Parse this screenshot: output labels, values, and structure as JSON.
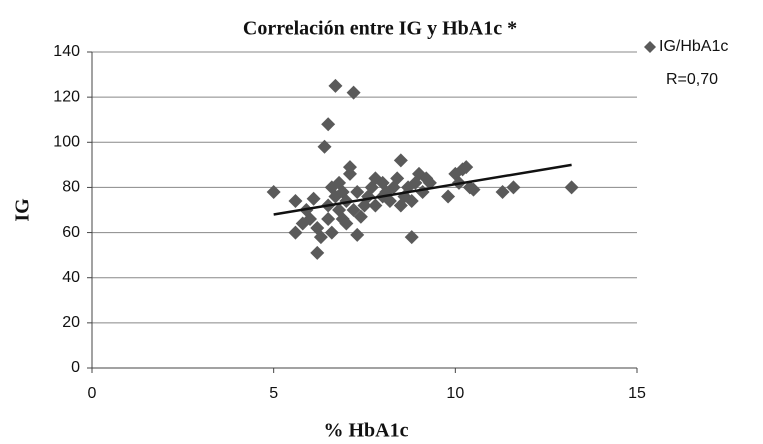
{
  "chart_data": {
    "type": "scatter",
    "title": "Correlación entre IG y HbA1c *",
    "x_label": "% HbA1c",
    "y_label": "IG",
    "annotation": "R=0,70",
    "legend": "right",
    "grid": true,
    "xlim": [
      0,
      15
    ],
    "xticks": [
      0,
      5,
      10,
      15
    ],
    "ylim": [
      0,
      140
    ],
    "yticks": [
      0,
      20,
      40,
      60,
      80,
      100,
      120,
      140
    ],
    "series": [
      {
        "name": "IG/HbA1c",
        "color": "#5a5a5a",
        "x": [
          5.0,
          5.6,
          5.6,
          5.8,
          5.9,
          6.0,
          6.1,
          6.2,
          6.2,
          6.3,
          6.4,
          6.5,
          6.5,
          6.5,
          6.6,
          6.6,
          6.7,
          6.7,
          6.8,
          6.8,
          6.9,
          6.9,
          7.0,
          7.0,
          7.1,
          7.1,
          7.2,
          7.2,
          7.3,
          7.3,
          7.4,
          7.5,
          7.6,
          7.7,
          7.8,
          7.8,
          8.0,
          8.0,
          8.1,
          8.2,
          8.3,
          8.4,
          8.5,
          8.5,
          8.6,
          8.7,
          8.8,
          8.8,
          8.9,
          9.0,
          9.1,
          9.2,
          9.3,
          9.8,
          10.0,
          10.1,
          10.2,
          10.3,
          10.4,
          10.5,
          11.3,
          11.6,
          13.2
        ],
        "values": [
          78,
          74,
          60,
          64,
          70,
          66,
          75,
          51,
          62,
          58,
          98,
          108,
          66,
          72,
          80,
          60,
          125,
          76,
          70,
          82,
          66,
          78,
          74,
          64,
          86,
          89,
          122,
          70,
          59,
          78,
          67,
          72,
          76,
          80,
          84,
          72,
          76,
          82,
          78,
          74,
          80,
          84,
          92,
          72,
          76,
          80,
          58,
          74,
          82,
          86,
          78,
          84,
          82,
          76,
          86,
          82,
          88,
          89,
          80,
          79,
          78,
          80,
          80
        ]
      }
    ],
    "trendline": {
      "x": [
        5.0,
        13.2
      ],
      "values": [
        68,
        90
      ]
    }
  }
}
